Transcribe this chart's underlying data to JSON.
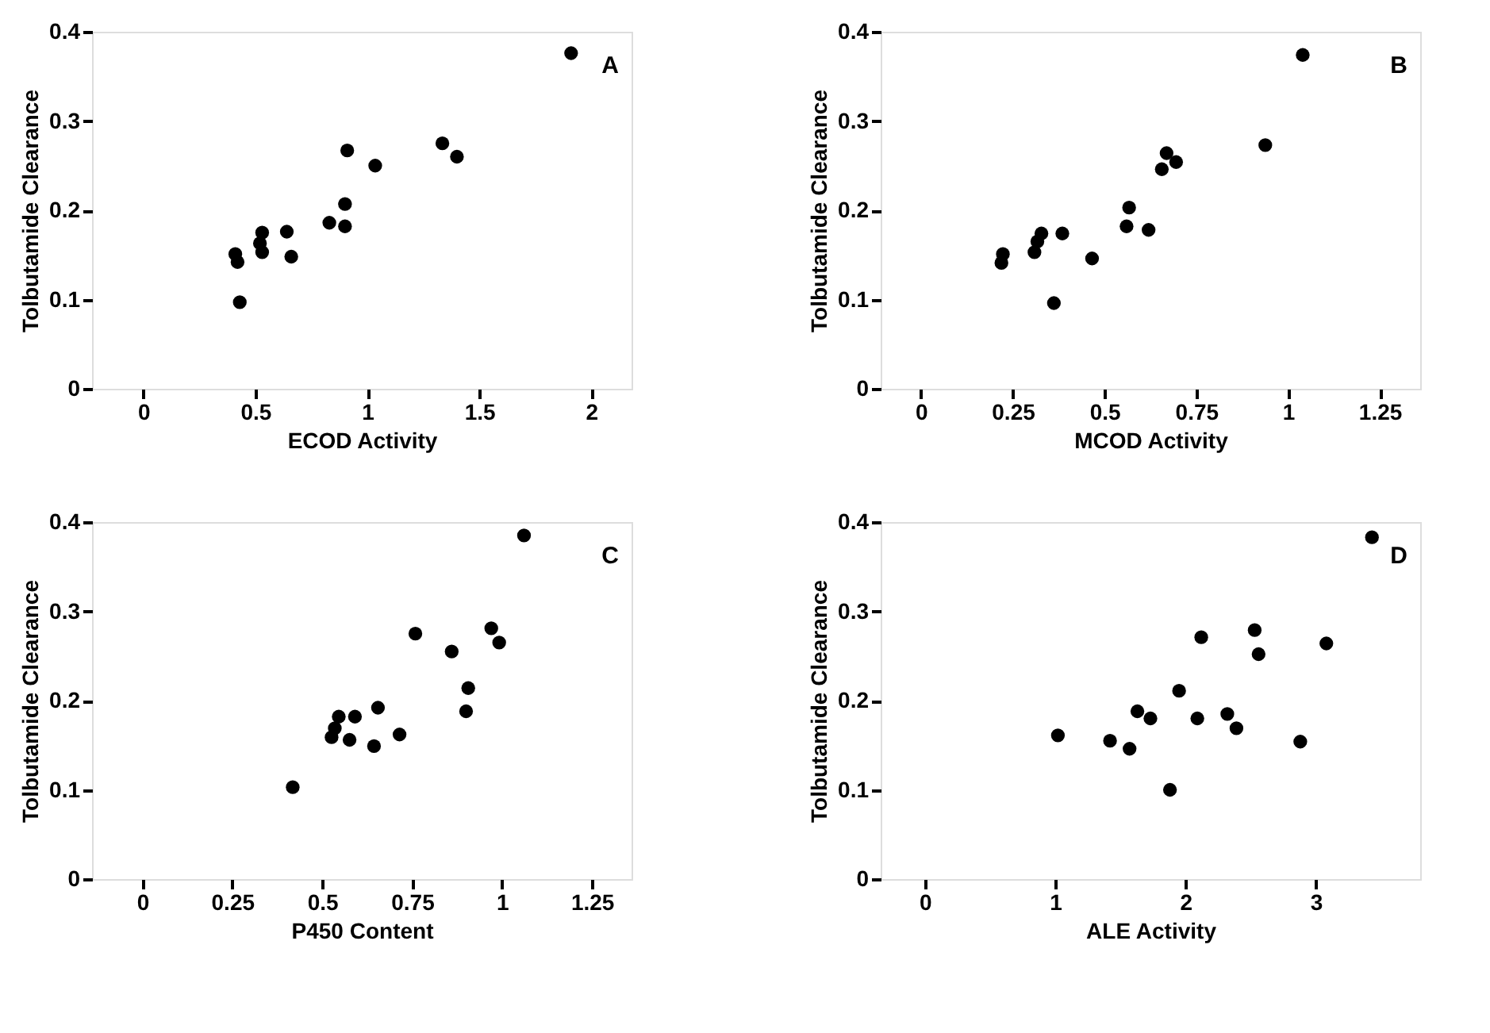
{
  "chart_data": [
    {
      "type": "scatter",
      "xlabel": "ECOD Activity",
      "ylabel": "Tolbutamide Clearance",
      "annotations": [
        "A"
      ],
      "color": "#000000",
      "marker": "circle",
      "grid": false,
      "x": [
        1.91,
        1.335,
        1.4,
        0.91,
        1.035,
        0.9,
        0.9,
        0.83,
        0.64,
        0.66,
        0.53,
        0.52,
        0.53,
        0.41,
        0.42,
        0.43
      ],
      "values": [
        0.376,
        0.275,
        0.26,
        0.267,
        0.25,
        0.207,
        0.182,
        0.186,
        0.176,
        0.148,
        0.175,
        0.163,
        0.153,
        0.151,
        0.142,
        0.097
      ],
      "xlim": [
        -0.23,
        2.18
      ],
      "xticks": [
        0,
        0.5,
        1,
        1.5,
        2
      ],
      "ylim": [
        0,
        0.4
      ],
      "yticks": [
        0,
        0.1,
        0.2,
        0.3,
        0.4
      ]
    },
    {
      "type": "scatter",
      "xlabel": "MCOD Activity",
      "ylabel": "Tolbutamide Clearance",
      "annotations": [
        "B"
      ],
      "color": "#000000",
      "marker": "circle",
      "grid": false,
      "x": [
        1.04,
        0.938,
        0.669,
        0.695,
        0.656,
        0.567,
        0.56,
        0.62,
        0.385,
        0.328,
        0.317,
        0.309,
        0.466,
        0.223,
        0.219,
        0.362
      ],
      "values": [
        0.374,
        0.273,
        0.264,
        0.254,
        0.246,
        0.203,
        0.182,
        0.178,
        0.174,
        0.174,
        0.165,
        0.153,
        0.146,
        0.151,
        0.141,
        0.096
      ],
      "xlim": [
        -0.11,
        1.36
      ],
      "xticks": [
        0,
        0.25,
        0.5,
        0.75,
        1,
        1.25
      ],
      "ylim": [
        0,
        0.4
      ],
      "yticks": [
        0,
        0.1,
        0.2,
        0.3,
        0.4
      ]
    },
    {
      "type": "scatter",
      "xlabel": "P450 Content",
      "ylabel": "Tolbutamide Clearance",
      "annotations": [
        "C"
      ],
      "color": "#000000",
      "marker": "circle",
      "grid": false,
      "x": [
        1.061,
        0.759,
        0.97,
        0.992,
        0.86,
        0.906,
        0.9,
        0.655,
        0.591,
        0.546,
        0.535,
        0.526,
        0.576,
        0.715,
        0.644,
        0.418
      ],
      "values": [
        0.385,
        0.275,
        0.281,
        0.265,
        0.255,
        0.214,
        0.188,
        0.192,
        0.182,
        0.182,
        0.169,
        0.159,
        0.156,
        0.162,
        0.149,
        0.103
      ],
      "xlim": [
        -0.14,
        1.36
      ],
      "xticks": [
        0,
        0.25,
        0.5,
        0.75,
        1,
        1.25
      ],
      "ylim": [
        0,
        0.4
      ],
      "yticks": [
        0,
        0.1,
        0.2,
        0.3,
        0.4
      ]
    },
    {
      "type": "scatter",
      "xlabel": "ALE Activity",
      "ylabel": "Tolbutamide Clearance",
      "annotations": [
        "D"
      ],
      "color": "#000000",
      "marker": "circle",
      "grid": false,
      "x": [
        3.43,
        2.53,
        2.56,
        3.08,
        2.12,
        1.95,
        1.63,
        1.73,
        2.09,
        2.32,
        2.39,
        2.88,
        1.02,
        1.42,
        1.57,
        1.88
      ],
      "values": [
        0.383,
        0.279,
        0.252,
        0.264,
        0.271,
        0.211,
        0.188,
        0.18,
        0.18,
        0.185,
        0.169,
        0.154,
        0.161,
        0.155,
        0.146,
        0.1
      ],
      "xlim": [
        -0.34,
        3.8
      ],
      "xticks": [
        0,
        1,
        2,
        3
      ],
      "ylim": [
        0,
        0.4
      ],
      "yticks": [
        0,
        0.1,
        0.2,
        0.3,
        0.4
      ]
    }
  ]
}
